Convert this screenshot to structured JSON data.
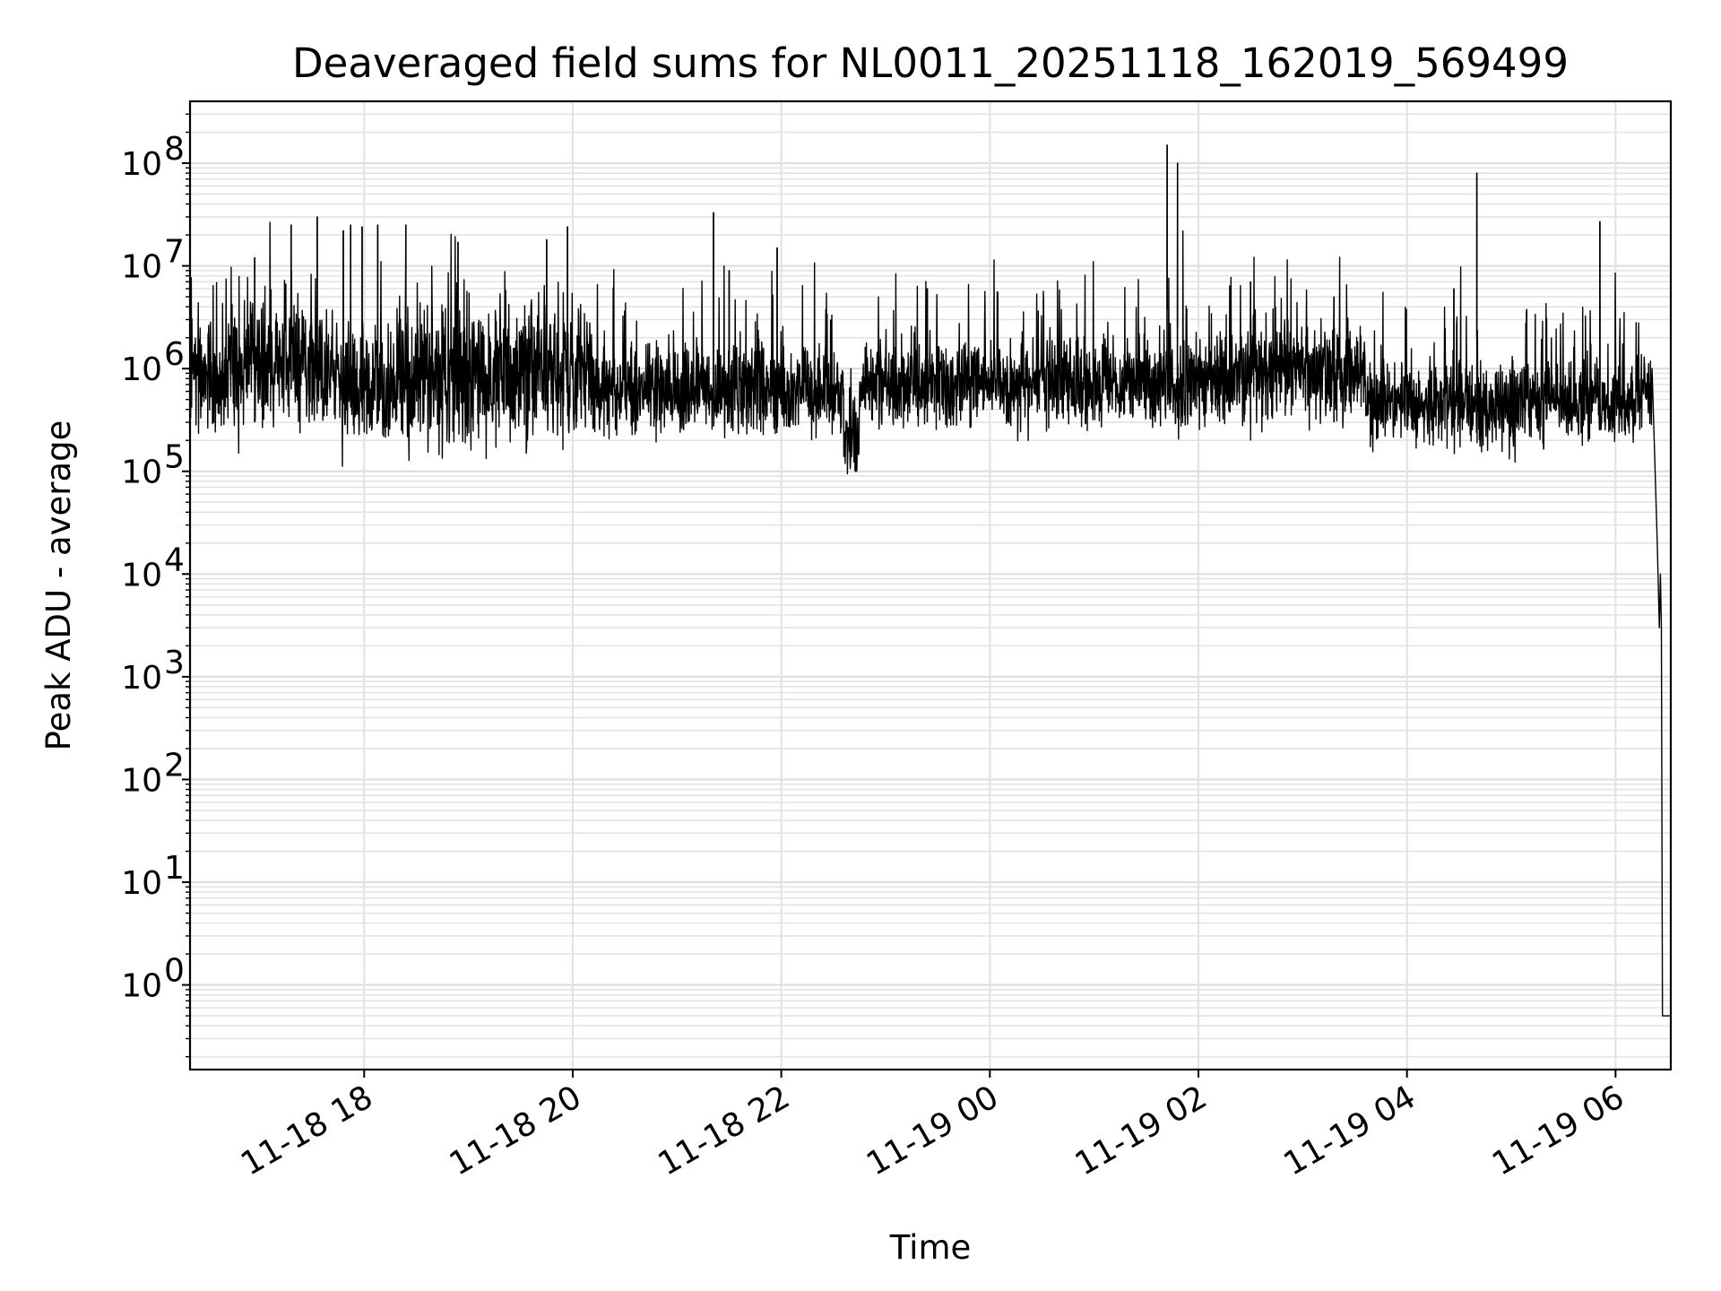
{
  "chart_data": {
    "type": "line",
    "title": "Deaveraged field sums for NL0011_20251118_162019_569499",
    "xlabel": "Time",
    "ylabel": "Peak ADU - average",
    "yscale": "log",
    "ylim": [
      0.15,
      400000000
    ],
    "xlim_hours": [
      16.33,
      30.53
    ],
    "grid": true,
    "x_ticks": [
      {
        "label": "11-18 18",
        "hour": 18
      },
      {
        "label": "11-18 20",
        "hour": 20
      },
      {
        "label": "11-18 22",
        "hour": 22
      },
      {
        "label": "11-19 00",
        "hour": 24
      },
      {
        "label": "11-19 02",
        "hour": 26
      },
      {
        "label": "11-19 04",
        "hour": 28
      },
      {
        "label": "11-19 06",
        "hour": 30
      }
    ],
    "y_ticks": [
      {
        "base": "10",
        "exp": "0",
        "value": 1
      },
      {
        "base": "10",
        "exp": "1",
        "value": 10
      },
      {
        "base": "10",
        "exp": "2",
        "value": 100
      },
      {
        "base": "10",
        "exp": "3",
        "value": 1000
      },
      {
        "base": "10",
        "exp": "4",
        "value": 10000
      },
      {
        "base": "10",
        "exp": "5",
        "value": 100000
      },
      {
        "base": "10",
        "exp": "6",
        "value": 1000000
      },
      {
        "base": "10",
        "exp": "7",
        "value": 10000000
      },
      {
        "base": "10",
        "exp": "8",
        "value": 100000000
      }
    ],
    "series": [
      {
        "name": "Peak ADU - average",
        "color": "#000000",
        "segments": [
          {
            "start": 16.33,
            "end": 16.7,
            "median": 900000,
            "spread": 0.45
          },
          {
            "start": 16.7,
            "end": 17.6,
            "median": 1200000,
            "spread": 0.6
          },
          {
            "start": 17.6,
            "end": 18.5,
            "median": 700000,
            "spread": 0.55
          },
          {
            "start": 18.5,
            "end": 19.3,
            "median": 800000,
            "spread": 0.6
          },
          {
            "start": 19.3,
            "end": 20.2,
            "median": 900000,
            "spread": 0.6
          },
          {
            "start": 20.2,
            "end": 22.6,
            "median": 600000,
            "spread": 0.4
          },
          {
            "start": 22.6,
            "end": 22.75,
            "median": 180000,
            "spread": 0.35
          },
          {
            "start": 22.75,
            "end": 26.3,
            "median": 700000,
            "spread": 0.4
          },
          {
            "start": 26.3,
            "end": 27.6,
            "median": 900000,
            "spread": 0.4
          },
          {
            "start": 27.6,
            "end": 30.2,
            "median": 450000,
            "spread": 0.35
          },
          {
            "start": 30.2,
            "end": 30.35,
            "median": 600000,
            "spread": 0.35
          }
        ],
        "spikes": [
          {
            "hour": 16.55,
            "value": 2000000
          },
          {
            "hour": 16.95,
            "value": 12000000
          },
          {
            "hour": 17.3,
            "value": 25000000
          },
          {
            "hour": 17.55,
            "value": 30000000
          },
          {
            "hour": 17.8,
            "value": 22000000
          },
          {
            "hour": 17.87,
            "value": 25000000
          },
          {
            "hour": 17.98,
            "value": 24000000
          },
          {
            "hour": 18.13,
            "value": 25000000
          },
          {
            "hour": 18.4,
            "value": 25000000
          },
          {
            "hour": 18.9,
            "value": 17000000
          },
          {
            "hour": 19.75,
            "value": 18000000
          },
          {
            "hour": 19.95,
            "value": 24000000
          },
          {
            "hour": 21.35,
            "value": 33000000
          },
          {
            "hour": 21.5,
            "value": 9000000
          },
          {
            "hour": 21.96,
            "value": 15000000
          },
          {
            "hour": 23.4,
            "value": 6000000
          },
          {
            "hour": 25.7,
            "value": 150000000
          },
          {
            "hour": 25.8,
            "value": 100000000
          },
          {
            "hour": 26.5,
            "value": 7000000
          },
          {
            "hour": 27.3,
            "value": 5000000
          },
          {
            "hour": 28.45,
            "value": 6000000
          },
          {
            "hour": 28.67,
            "value": 80000000
          },
          {
            "hour": 29.85,
            "value": 27000000
          }
        ],
        "tail": [
          {
            "hour": 30.35,
            "value": 1000000
          },
          {
            "hour": 30.4,
            "value": 20000
          },
          {
            "hour": 30.42,
            "value": 3000
          },
          {
            "hour": 30.43,
            "value": 10000
          },
          {
            "hour": 30.44,
            "value": 3000
          },
          {
            "hour": 30.45,
            "value": 0.5
          },
          {
            "hour": 30.53,
            "value": 0.5
          }
        ]
      }
    ]
  }
}
